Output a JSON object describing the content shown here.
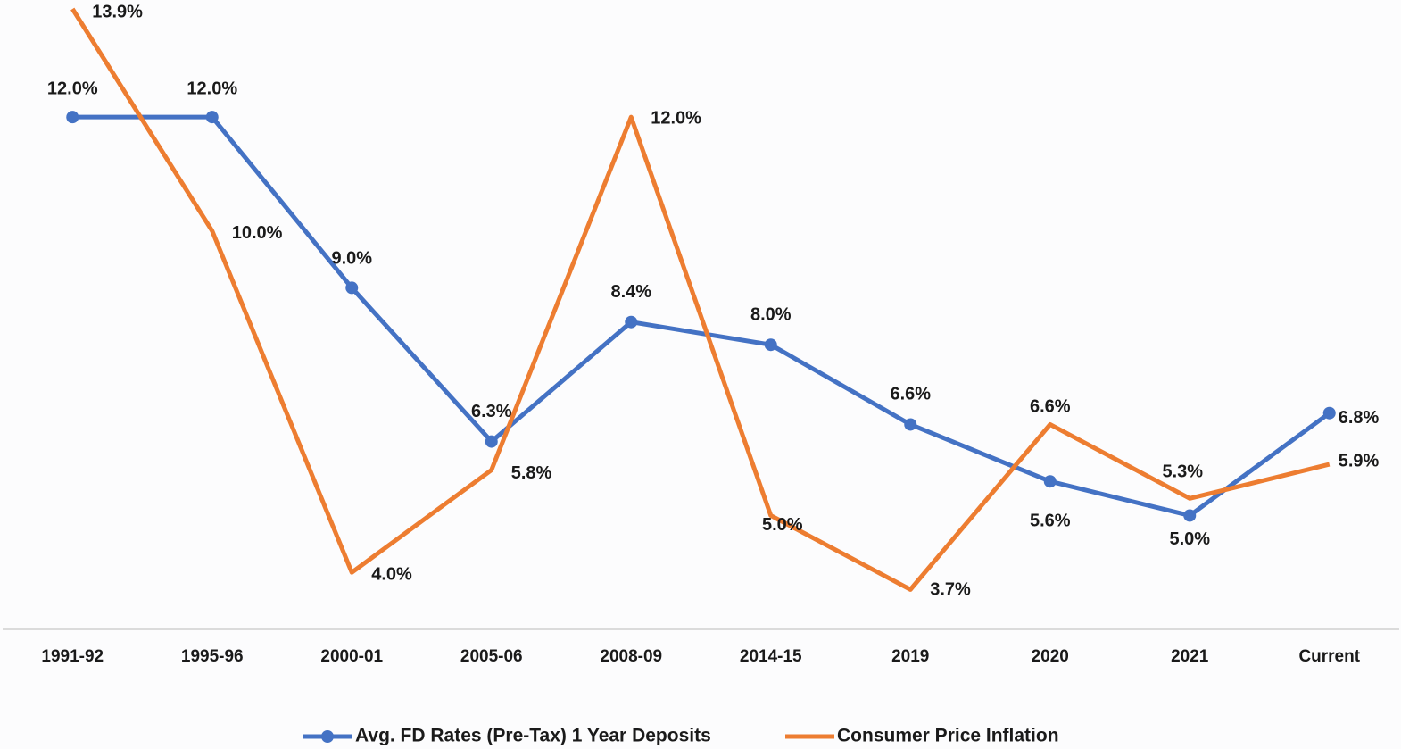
{
  "chart_data": {
    "type": "line",
    "categories": [
      "1991-92",
      "1995-96",
      "2000-01",
      "2005-06",
      "2008-09",
      "2014-15",
      "2019",
      "2020",
      "2021",
      "Current"
    ],
    "series": [
      {
        "name": "Avg. FD Rates (Pre-Tax) 1 Year Deposits",
        "color": "#4472c4",
        "marker": true,
        "values": [
          12.0,
          12.0,
          9.0,
          6.3,
          8.4,
          8.0,
          6.6,
          5.6,
          5.0,
          6.8
        ],
        "value_labels": [
          "12.0%",
          "12.0%",
          "9.0%",
          "6.3%",
          "8.4%",
          "8.0%",
          "6.6%",
          "5.6%",
          "5.0%",
          "6.8%"
        ]
      },
      {
        "name": "Consumer Price Inflation",
        "color": "#ed7d31",
        "marker": false,
        "values": [
          13.9,
          10.0,
          4.0,
          5.8,
          12.0,
          5.0,
          3.7,
          6.6,
          5.3,
          5.9
        ],
        "value_labels": [
          "13.9%",
          "10.0%",
          "4.0%",
          "5.8%",
          "12.0%",
          "5.0%",
          "3.7%",
          "6.6%",
          "5.3%",
          "5.9%"
        ]
      }
    ],
    "ylim": [
      3,
      14
    ],
    "legend": "bottom"
  }
}
